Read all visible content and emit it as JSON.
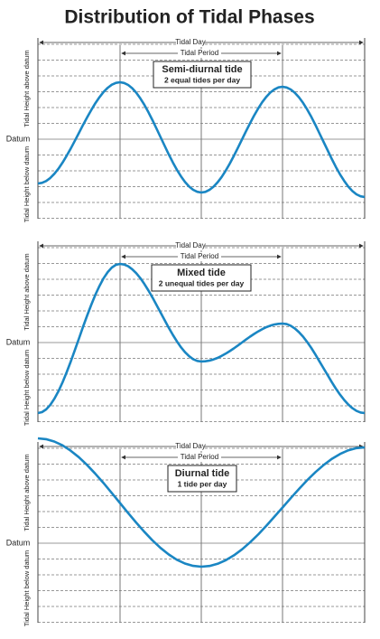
{
  "title": "Distribution of Tidal Phases",
  "panels": [
    {
      "tidal_day": "Tidal Day",
      "tidal_period": "Tidal Period",
      "label": "Semi-diurnal tide",
      "sublabel": "2 equal tides per day",
      "datum": "Datum",
      "above": "Tidal Height above datum",
      "below": "Tidal Height below datum"
    },
    {
      "tidal_day": "Tidal Day",
      "tidal_period": "Tidal Period",
      "label": "Mixed tide",
      "sublabel": "2 unequal tides per day",
      "datum": "Datum",
      "above": "Tidal Height above datum",
      "below": "Tidal Height below datum"
    },
    {
      "tidal_day": "Tidal Day",
      "tidal_period": "Tidal Period",
      "label": "Diurnal tide",
      "sublabel": "1 tide per day",
      "datum": "Datum",
      "above": "Tidal Height above datum",
      "below": "Tidal Height below datum"
    }
  ]
}
